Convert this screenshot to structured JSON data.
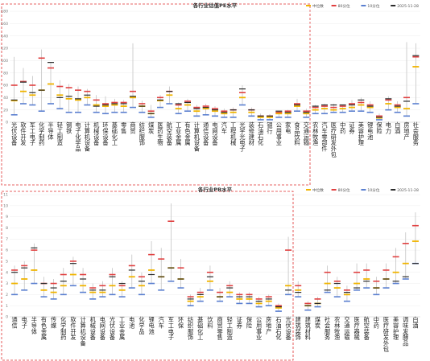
{
  "chart_data": [
    {
      "type": "dot-range",
      "title": "各行业估值PE水平",
      "yticks": [
        "0",
        "20",
        "40",
        "60",
        "80",
        "100",
        "120",
        "140",
        "160",
        "180"
      ],
      "ylim": [
        0,
        180
      ],
      "legend_position": "top-right",
      "legend": [
        "中位数",
        "80分位",
        "10分位",
        "2025-11-28"
      ],
      "colors": {
        "median": "#f0b400",
        "p80": "#e04040",
        "p10": "#5a7fd0",
        "current": "#2a2a2a",
        "range": "#bbbbbb"
      },
      "categories": [
        "光伏设备",
        "软件开发",
        "军工电子",
        "化学制药",
        "半导体",
        "轻工制造",
        "钢铁",
        "电子化学品",
        "计算机设备",
        "机械设备",
        "环保设备",
        "基础化工",
        "零售",
        "商贸",
        "纺织服饰",
        "煤炭",
        "医药生物",
        "航空装备",
        "工业金属",
        "有色金属",
        "计算机设备",
        "通信设备",
        "电网设备",
        "汽车",
        "工程机械",
        "光学光电子",
        "装修建材",
        "石油石化",
        "银行",
        "公用事业",
        "家电",
        "食品饮料",
        "交通运输",
        "农林牧渔",
        "汽车零部件",
        "医疗研发外包",
        "中药",
        "证券",
        "美容护理",
        "锂电池",
        "保险",
        "电力",
        "白酒",
        "房地产",
        "社会服务"
      ],
      "series": {
        "max": [
          106,
          88,
          75,
          118,
          97,
          68,
          62,
          58,
          54,
          44,
          42,
          38,
          36,
          128,
          35,
          28,
          44,
          58,
          32,
          38,
          28,
          30,
          26,
          22,
          24,
          60,
          24,
          14,
          13,
          18,
          20,
          38,
          22,
          28,
          30,
          30,
          28,
          36,
          40,
          34,
          14,
          42,
          34,
          130,
          128
        ],
        "p80": [
          60,
          66,
          60,
          104,
          88,
          58,
          56,
          52,
          50,
          36,
          30,
          32,
          32,
          50,
          30,
          18,
          40,
          50,
          28,
          34,
          24,
          26,
          22,
          18,
          20,
          48,
          20,
          10,
          10,
          16,
          18,
          30,
          18,
          24,
          26,
          24,
          26,
          30,
          32,
          28,
          10,
          36,
          28,
          40,
          106
        ],
        "median": [
          35,
          50,
          44,
          52,
          62,
          44,
          38,
          36,
          40,
          28,
          26,
          28,
          26,
          40,
          26,
          14,
          35,
          44,
          22,
          28,
          18,
          22,
          18,
          14,
          16,
          40,
          16,
          8,
          8,
          14,
          14,
          26,
          14,
          20,
          22,
          20,
          22,
          24,
          28,
          24,
          7,
          30,
          24,
          22,
          90
        ],
        "p10": [
          12,
          30,
          28,
          18,
          30,
          22,
          16,
          16,
          28,
          16,
          14,
          16,
          16,
          24,
          16,
          8,
          24,
          30,
          14,
          18,
          10,
          12,
          10,
          8,
          8,
          28,
          10,
          4,
          4,
          8,
          8,
          18,
          8,
          14,
          14,
          16,
          16,
          18,
          18,
          16,
          4,
          20,
          16,
          10,
          30
        ],
        "current": [
          36,
          65,
          48,
          52,
          97,
          40,
          42,
          38,
          44,
          26,
          28,
          30,
          30,
          42,
          26,
          14,
          36,
          50,
          30,
          32,
          22,
          24,
          20,
          16,
          20,
          54,
          20,
          10,
          10,
          18,
          16,
          28,
          16,
          26,
          28,
          28,
          28,
          28,
          36,
          26,
          8,
          38,
          26,
          34,
          108
        ]
      }
    },
    {
      "type": "dot-range",
      "title": "各行业PB水平",
      "yticks": [
        "0",
        "1",
        "2",
        "3",
        "4",
        "5",
        "6",
        "7",
        "8",
        "9",
        "10",
        "11"
      ],
      "ylim": [
        0,
        11
      ],
      "legend_position": "top-right",
      "legend": [
        "中位数",
        "80分位",
        "10分位",
        "2025-11-28"
      ],
      "colors": {
        "median": "#f0b400",
        "p80": "#e04040",
        "p10": "#5a7fd0",
        "current": "#2a2a2a",
        "range": "#bbbbbb"
      },
      "categories": [
        "通信",
        "电子",
        "半导体",
        "有色金属",
        "传媒",
        "化学制药",
        "软件开发",
        "计算机设备",
        "机械设备",
        "电网设备",
        "光伏设备",
        "工业金属",
        "电池",
        "化学品",
        "锂电池",
        "汽车",
        "军工电子",
        "环保",
        "纺织服饰",
        "基础化工",
        "饮料",
        "商贸零售",
        "轻工制造",
        "证券",
        "保险",
        "公用事业",
        "房地产",
        "石油石化",
        "光伏设备",
        "建筑装饰",
        "建筑材料",
        "煤炭",
        "社会服务",
        "农林牧渔",
        "交通运输",
        "医疗器械",
        "航空装备",
        "中药",
        "医疗研发外包",
        "美容护理",
        "调味发酵品",
        "白酒"
      ],
      "series": {
        "max": [
          4.6,
          5.0,
          6.6,
          3.6,
          3.4,
          4.4,
          5.4,
          4.4,
          3.0,
          3.2,
          4.4,
          3.2,
          5.6,
          4.0,
          6.8,
          6.2,
          10.2,
          5.2,
          2.0,
          2.6,
          4.6,
          2.6,
          3.2,
          2.2,
          2.2,
          1.8,
          2.0,
          1.2,
          7.2,
          3.2,
          1.4,
          1.8,
          4.6,
          3.6,
          2.8,
          4.8,
          4.8,
          3.6,
          4.8,
          6.2,
          7.6,
          9.4
        ],
        "p80": [
          4.2,
          4.6,
          6.0,
          3.0,
          3.0,
          3.8,
          5.0,
          3.8,
          2.6,
          2.8,
          3.8,
          2.8,
          4.6,
          3.6,
          5.6,
          5.2,
          8.6,
          4.4,
          1.8,
          2.2,
          4.0,
          2.2,
          2.8,
          2.0,
          2.0,
          1.6,
          1.8,
          1.0,
          6.0,
          2.8,
          1.2,
          1.6,
          4.0,
          3.2,
          2.4,
          4.0,
          4.2,
          3.2,
          4.2,
          5.4,
          6.6,
          8.2
        ],
        "median": [
          3.0,
          3.4,
          4.2,
          2.4,
          2.2,
          2.8,
          3.8,
          2.8,
          2.2,
          2.2,
          2.8,
          2.4,
          3.6,
          2.8,
          4.2,
          3.6,
          4.4,
          3.4,
          1.4,
          1.8,
          3.2,
          1.8,
          2.2,
          1.6,
          1.6,
          1.2,
          1.4,
          0.8,
          2.8,
          2.4,
          1.0,
          1.2,
          3.0,
          2.6,
          2.0,
          3.0,
          3.4,
          2.6,
          3.4,
          4.0,
          4.8,
          6.8
        ],
        "p10": [
          2.0,
          2.4,
          3.0,
          1.8,
          1.6,
          2.0,
          2.8,
          2.2,
          1.6,
          1.8,
          2.0,
          1.8,
          2.6,
          2.0,
          3.0,
          2.4,
          3.2,
          2.6,
          1.0,
          1.4,
          2.4,
          1.4,
          1.8,
          1.2,
          1.2,
          0.9,
          1.0,
          0.5,
          2.0,
          1.8,
          0.6,
          0.9,
          2.2,
          1.8,
          1.4,
          2.4,
          2.6,
          2.0,
          2.6,
          3.0,
          3.4,
          4.8
        ],
        "current": [
          4.0,
          4.4,
          6.2,
          3.0,
          2.6,
          3.2,
          4.8,
          3.4,
          2.4,
          2.4,
          3.6,
          3.0,
          4.2,
          3.2,
          3.8,
          3.6,
          4.4,
          3.4,
          1.6,
          2.0,
          3.6,
          1.8,
          2.6,
          1.8,
          1.8,
          1.4,
          1.6,
          0.9,
          2.4,
          2.2,
          1.0,
          1.2,
          2.4,
          3.0,
          2.2,
          2.6,
          3.2,
          2.6,
          3.4,
          3.2,
          3.6,
          4.8
        ]
      }
    }
  ]
}
